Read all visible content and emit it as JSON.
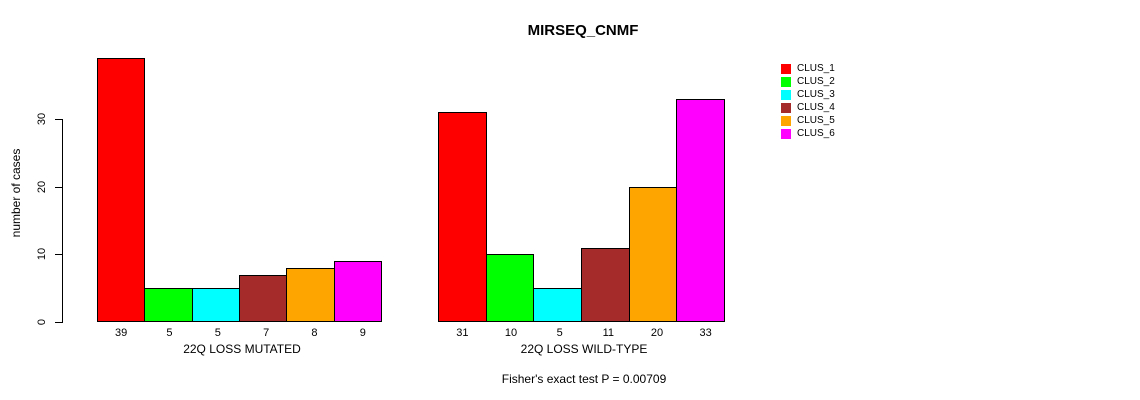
{
  "title": "MIRSEQ_CNMF",
  "footer": "Fisher's exact test P = 0.00709",
  "chart_data": {
    "type": "bar",
    "title": "MIRSEQ_CNMF",
    "ylabel": "number of cases",
    "xlabel": "",
    "y_ticks": [
      0,
      10,
      20,
      30
    ],
    "ylim": [
      0,
      30
    ],
    "grid": false,
    "legend_position": "right",
    "categories": [
      "CLUS_1",
      "CLUS_2",
      "CLUS_3",
      "CLUS_4",
      "CLUS_5",
      "CLUS_6"
    ],
    "colors": [
      "#FF0000",
      "#00FF00",
      "#00FFFF",
      "#A52A2A",
      "#FFA500",
      "#FF00FF"
    ],
    "groups": [
      {
        "label": "22Q LOSS MUTATED",
        "values": [
          39,
          5,
          5,
          7,
          8,
          9
        ]
      },
      {
        "label": "22Q LOSS WILD-TYPE",
        "values": [
          31,
          10,
          5,
          11,
          20,
          33
        ]
      }
    ],
    "annotation": "Fisher's exact test P = 0.00709"
  }
}
